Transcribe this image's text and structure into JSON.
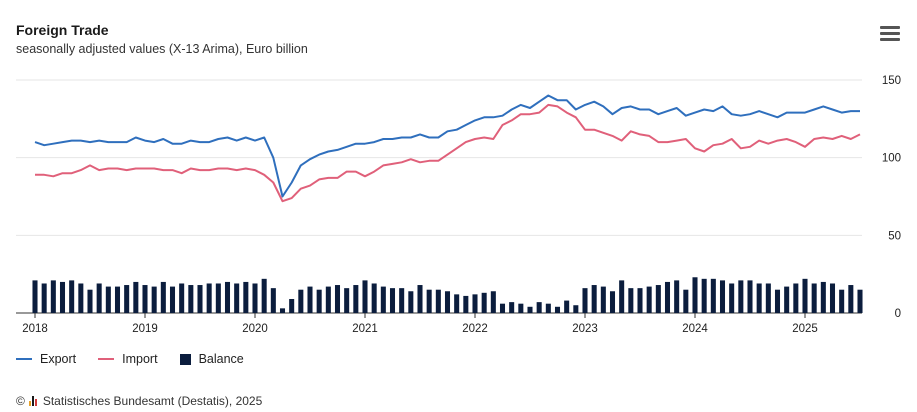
{
  "header": {
    "title": "Foreign Trade",
    "subtitle": "seasonally adjusted values (X-13 Arima), Euro billion"
  },
  "legend": [
    {
      "label": "Export",
      "color": "#2f6fbd",
      "kind": "line"
    },
    {
      "label": "Import",
      "color": "#e0607a",
      "kind": "line"
    },
    {
      "label": "Balance",
      "color": "#0b1d3d",
      "kind": "bar"
    }
  ],
  "footer": {
    "source": "Statistisches Bundesamt (Destatis), 2025"
  },
  "chart_data": {
    "type": "line",
    "x_start": "2018-01",
    "x_end": "2025-07",
    "x_ticks": [
      "2018",
      "2019",
      "2020",
      "2021",
      "2022",
      "2023",
      "2024",
      "2025"
    ],
    "y_ticks": [
      0,
      50,
      100,
      150
    ],
    "ylim": [
      0,
      150
    ],
    "y_axis_side": "right",
    "grid": true,
    "legend_position": "bottom-left",
    "series": [
      {
        "name": "Export",
        "type": "line",
        "color": "#2f6fbd",
        "values": [
          110,
          108,
          109,
          110,
          111,
          111,
          110,
          111,
          110,
          110,
          110,
          113,
          111,
          110,
          112,
          109,
          109,
          111,
          110,
          110,
          112,
          113,
          111,
          113,
          111,
          113,
          100,
          75,
          84,
          95,
          99,
          102,
          104,
          105,
          107,
          109,
          109,
          110,
          112,
          112,
          113,
          113,
          115,
          113,
          113,
          117,
          118,
          121,
          124,
          126,
          126,
          127,
          131,
          134,
          132,
          136,
          140,
          137,
          137,
          131,
          134,
          136,
          133,
          128,
          132,
          133,
          131,
          131,
          128,
          130,
          132,
          127,
          129,
          131,
          130,
          133,
          128,
          127,
          128,
          130,
          128,
          126,
          129,
          129,
          129,
          131,
          133,
          131,
          129,
          130,
          130
        ]
      },
      {
        "name": "Import",
        "type": "line",
        "color": "#e0607a",
        "values": [
          89,
          89,
          88,
          90,
          90,
          92,
          95,
          92,
          93,
          93,
          92,
          93,
          93,
          93,
          92,
          92,
          90,
          93,
          92,
          92,
          93,
          93,
          92,
          93,
          92,
          89,
          84,
          72,
          74,
          80,
          82,
          86,
          87,
          87,
          91,
          91,
          88,
          91,
          95,
          96,
          97,
          99,
          97,
          98,
          98,
          102,
          106,
          110,
          112,
          113,
          112,
          121,
          124,
          128,
          128,
          129,
          134,
          133,
          129,
          126,
          118,
          118,
          116,
          114,
          111,
          117,
          115,
          114,
          110,
          110,
          111,
          112,
          106,
          104,
          108,
          109,
          112,
          106,
          107,
          111,
          109,
          111,
          112,
          110,
          107,
          112,
          113,
          112,
          114,
          112,
          115
        ]
      },
      {
        "name": "Balance",
        "type": "bar",
        "color": "#0b1d3d",
        "values": [
          21,
          19,
          21,
          20,
          21,
          19,
          15,
          19,
          17,
          17,
          18,
          20,
          18,
          17,
          20,
          17,
          19,
          18,
          18,
          19,
          19,
          20,
          19,
          20,
          19,
          22,
          16,
          3,
          9,
          15,
          17,
          15,
          17,
          18,
          16,
          18,
          21,
          19,
          17,
          16,
          16,
          14,
          18,
          15,
          15,
          14,
          12,
          11,
          12,
          13,
          14,
          6,
          7,
          6,
          4,
          7,
          6,
          4,
          8,
          5,
          16,
          18,
          17,
          14,
          21,
          16,
          16,
          17,
          18,
          20,
          21,
          15,
          23,
          22,
          22,
          21,
          19,
          21,
          21,
          19,
          19,
          15,
          17,
          19,
          22,
          19,
          20,
          19,
          15,
          18,
          15
        ]
      }
    ]
  }
}
